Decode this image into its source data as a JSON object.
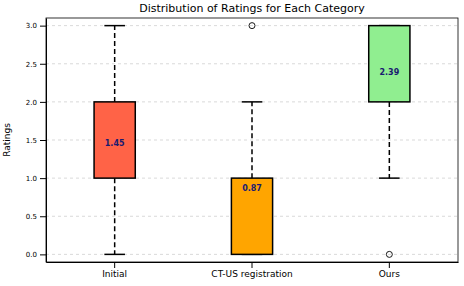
{
  "chart_data": {
    "type": "box",
    "title": "Distribution of Ratings for Each Category",
    "y_label": "Ratings",
    "categories": [
      "Initial",
      "CT-US registration",
      "Ours"
    ],
    "whisker_low": [
      0,
      0,
      1
    ],
    "q1": [
      1,
      0,
      2
    ],
    "q3": [
      2,
      1,
      3
    ],
    "whisker_high": [
      3,
      2,
      3
    ],
    "outliers": [
      [],
      [
        3
      ],
      [
        0
      ]
    ],
    "means": [
      1.45,
      0.87,
      2.39
    ],
    "colors": [
      "#ff6347",
      "#ffa500",
      "#90ee90"
    ],
    "data_labels": true,
    "grid": true,
    "ylim": [
      -0.1,
      3.1
    ],
    "yticks": [
      {
        "value": 0,
        "label": "0.0"
      },
      {
        "value": 0.5,
        "label": "0.5"
      },
      {
        "value": 1,
        "label": "1.0"
      },
      {
        "value": 1.5,
        "label": "1.5"
      },
      {
        "value": 2,
        "label": "2.0"
      },
      {
        "value": 2.5,
        "label": "2.5"
      },
      {
        "value": 3,
        "label": "3.0"
      }
    ]
  }
}
